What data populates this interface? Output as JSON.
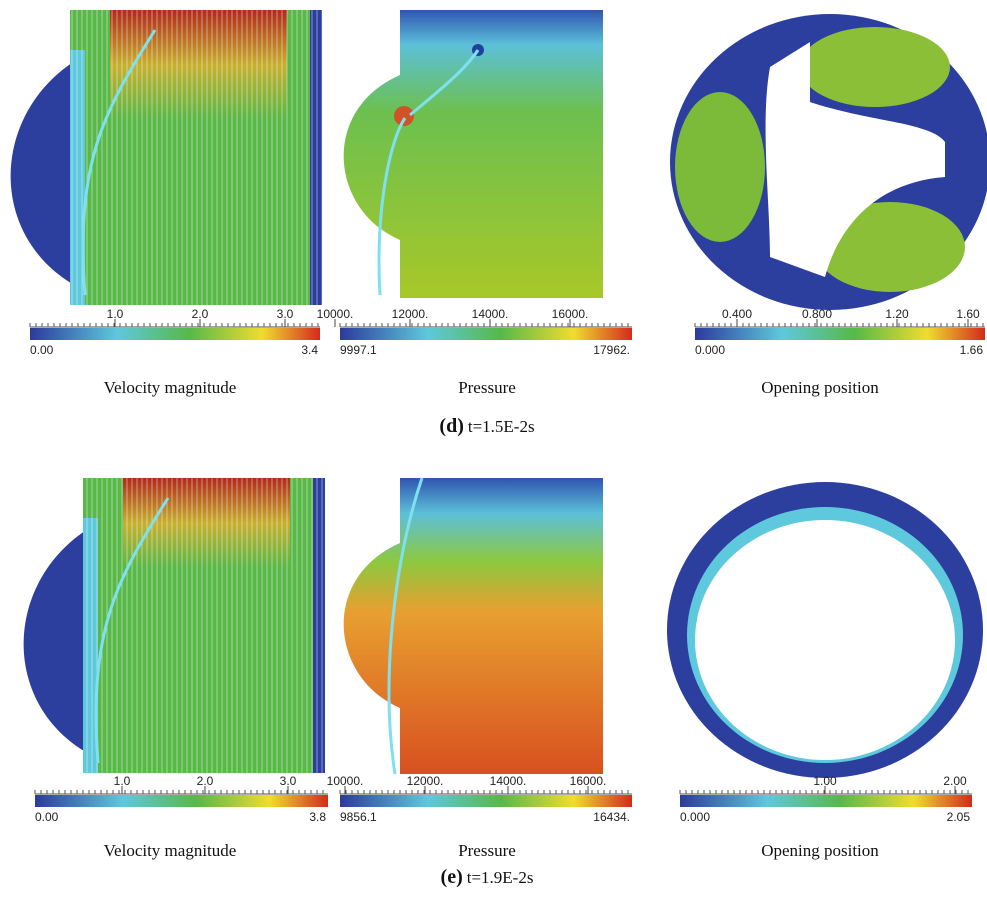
{
  "panels": [
    {
      "label": "(d)",
      "time": "t=1.5E-2s",
      "plots": [
        {
          "caption": "Velocity magnitude",
          "colorbar": {
            "ticks": [
              "1.0",
              "2.0",
              "3.0"
            ],
            "min": "0.00",
            "max": "3.4"
          }
        },
        {
          "caption": "Pressure",
          "colorbar": {
            "ticks": [
              "10000.",
              "12000.",
              "14000.",
              "16000."
            ],
            "min": "9997.1",
            "max": "17962."
          }
        },
        {
          "caption": "Opening position",
          "colorbar": {
            "ticks": [
              "0.400",
              "0.800",
              "1.20",
              "1.60"
            ],
            "min": "0.000",
            "max": "1.66"
          }
        }
      ]
    },
    {
      "label": "(e)",
      "time": "t=1.9E-2s",
      "plots": [
        {
          "caption": "Velocity magnitude",
          "colorbar": {
            "ticks": [
              "1.0",
              "2.0",
              "3.0"
            ],
            "min": "0.00",
            "max": "3.8"
          }
        },
        {
          "caption": "Pressure",
          "colorbar": {
            "ticks": [
              "10000.",
              "12000.",
              "14000.",
              "16000."
            ],
            "min": "9856.1",
            "max": "16434."
          }
        },
        {
          "caption": "Opening position",
          "colorbar": {
            "ticks": [
              "1.00",
              "2.00"
            ],
            "min": "0.000",
            "max": "2.05"
          }
        }
      ]
    }
  ]
}
